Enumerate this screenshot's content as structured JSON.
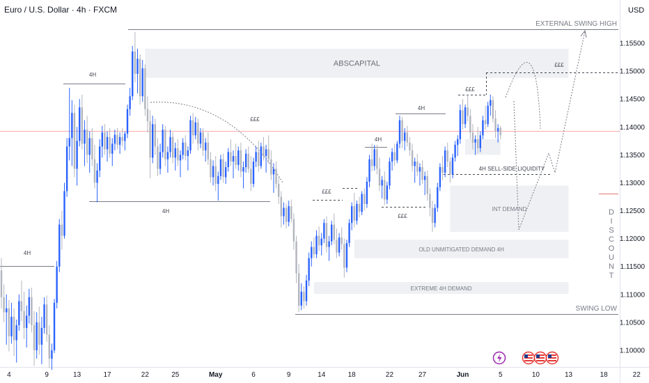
{
  "header": {
    "symbol_title": "Euro / U.S. Dollar · 4h · FXCM",
    "currency": "USD"
  },
  "colors": {
    "candle_up": "#2962ff",
    "candle_down": "#b2b5be",
    "zone_fill": "#eef0f3",
    "line": "#787b86",
    "price_line": "#f7a8a8",
    "axis_text": "#131722"
  },
  "chart_data": {
    "type": "candlestick",
    "title": "Euro / U.S. Dollar · 4h · FXCM",
    "y_ticks": [
      "1.15500",
      "1.15000",
      "1.14500",
      "1.14000",
      "1.13500",
      "1.13000",
      "1.12500",
      "1.12000",
      "1.11500",
      "1.11000",
      "1.10500",
      "1.10000"
    ],
    "ylim": [
      1.0965,
      1.1595
    ],
    "x_ticks": [
      {
        "label": "4",
        "idx": 3
      },
      {
        "label": "9",
        "idx": 18
      },
      {
        "label": "13",
        "idx": 30
      },
      {
        "label": "17",
        "idx": 42
      },
      {
        "label": "22",
        "idx": 57
      },
      {
        "label": "25",
        "idx": 69
      },
      {
        "label": "May",
        "idx": 85,
        "bold": true
      },
      {
        "label": "6",
        "idx": 100
      },
      {
        "label": "9",
        "idx": 114
      },
      {
        "label": "14",
        "idx": 127
      },
      {
        "label": "18",
        "idx": 139
      },
      {
        "label": "22",
        "idx": 154
      },
      {
        "label": "27",
        "idx": 167
      },
      {
        "label": "Jun",
        "idx": 183,
        "bold": true
      },
      {
        "label": "5",
        "idx": 198
      },
      {
        "label": "10",
        "idx": 212
      },
      {
        "label": "13",
        "idx": 225
      },
      {
        "label": "18",
        "idx": 239
      },
      {
        "label": "22",
        "idx": 252
      }
    ],
    "zones": [
      {
        "label": "ABSCAPITAL",
        "x0": 57,
        "x1": 225,
        "y_top": 1.154,
        "y_bot": 1.1488
      },
      {
        "label": "INT DEMAND",
        "x0": 178,
        "x1": 225,
        "y_top": 1.1295,
        "y_bot": 1.1212
      },
      {
        "label": "OLD UNMITIGATED DEMAND  4H",
        "x0": 140,
        "x1": 225,
        "y_top": 1.1198,
        "y_bot": 1.1165
      },
      {
        "label": "EXTREME 4H DEMAND",
        "x0": 124,
        "x1": 225,
        "y_top": 1.1122,
        "y_bot": 1.1101
      },
      {
        "label": "",
        "x0": 184,
        "x1": 198,
        "y_top": 1.1378,
        "y_bot": 1.135
      }
    ],
    "annotations": [
      {
        "text": "EXTERNAL SWING HIGH"
      },
      {
        "text": "SWING LOW"
      },
      {
        "text": "4H SELL-SIDE LIQUIDITY"
      },
      {
        "text": "4H"
      },
      {
        "text": "4H"
      },
      {
        "text": "4H"
      },
      {
        "text": "4H"
      },
      {
        "text": "4H"
      },
      {
        "text": "£££"
      },
      {
        "text": "£££"
      },
      {
        "text": "£££"
      },
      {
        "text": "£££"
      },
      {
        "text": "£££"
      },
      {
        "text": "£££"
      }
    ],
    "side_label": "DISCOUNT",
    "current_price": 1.1392,
    "candles": [
      [
        1.1143,
        1.1165,
        1.1075,
        1.1095
      ],
      [
        1.1095,
        1.1118,
        1.105,
        1.1068
      ],
      [
        1.1068,
        1.11,
        1.101,
        1.1075
      ],
      [
        1.1075,
        1.109,
        1.0998,
        1.1025
      ],
      [
        1.1025,
        1.1085,
        1.1012,
        1.106
      ],
      [
        1.106,
        1.1075,
        1.099,
        1.1018
      ],
      [
        1.1018,
        1.1055,
        1.0978,
        1.1045
      ],
      [
        1.1045,
        1.11,
        1.1035,
        1.1088
      ],
      [
        1.1088,
        1.1125,
        1.1052,
        1.107
      ],
      [
        1.107,
        1.1105,
        1.102,
        1.104
      ],
      [
        1.104,
        1.108,
        1.1005,
        1.1062
      ],
      [
        1.1062,
        1.111,
        1.1048,
        1.1095
      ],
      [
        1.1095,
        1.1112,
        1.1032,
        1.1045
      ],
      [
        1.1045,
        1.107,
        1.0972,
        1.1
      ],
      [
        1.1,
        1.1068,
        1.0985,
        1.105
      ],
      [
        1.105,
        1.1078,
        1.0992,
        1.101
      ],
      [
        1.101,
        1.106,
        1.0975,
        1.104
      ],
      [
        1.104,
        1.1095,
        1.103,
        1.1082
      ],
      [
        1.1082,
        1.1098,
        1.1015,
        1.1028
      ],
      [
        1.1028,
        1.1045,
        1.0968,
        1.0985
      ],
      [
        1.0985,
        1.1012,
        1.0965,
        1.1
      ],
      [
        1.1,
        1.1092,
        1.0995,
        1.1085
      ],
      [
        1.1085,
        1.116,
        1.1075,
        1.115
      ],
      [
        1.115,
        1.1235,
        1.114,
        1.1225
      ],
      [
        1.1225,
        1.125,
        1.118,
        1.1205
      ],
      [
        1.1205,
        1.13,
        1.12,
        1.1285
      ],
      [
        1.1285,
        1.138,
        1.1275,
        1.1365
      ],
      [
        1.1365,
        1.147,
        1.134,
        1.138
      ],
      [
        1.138,
        1.1448,
        1.133,
        1.1425
      ],
      [
        1.1425,
        1.144,
        1.131,
        1.1325
      ],
      [
        1.1325,
        1.14,
        1.1295,
        1.1375
      ],
      [
        1.1375,
        1.145,
        1.1365,
        1.1435
      ],
      [
        1.1435,
        1.1458,
        1.136,
        1.137
      ],
      [
        1.137,
        1.1412,
        1.133,
        1.1395
      ],
      [
        1.1395,
        1.142,
        1.1335,
        1.135
      ],
      [
        1.135,
        1.1392,
        1.1318,
        1.138
      ],
      [
        1.138,
        1.1398,
        1.133,
        1.1342
      ],
      [
        1.1342,
        1.1368,
        1.129,
        1.13
      ],
      [
        1.13,
        1.1335,
        1.1265,
        1.1322
      ],
      [
        1.1322,
        1.1378,
        1.131,
        1.1365
      ],
      [
        1.1365,
        1.1402,
        1.1345,
        1.139
      ],
      [
        1.139,
        1.1405,
        1.135,
        1.136
      ],
      [
        1.136,
        1.1392,
        1.1338,
        1.1382
      ],
      [
        1.1382,
        1.1398,
        1.1345,
        1.1352
      ],
      [
        1.1352,
        1.138,
        1.133,
        1.137
      ],
      [
        1.137,
        1.1395,
        1.1358,
        1.1386
      ],
      [
        1.1386,
        1.1398,
        1.136,
        1.1368
      ],
      [
        1.1368,
        1.139,
        1.1352,
        1.1382
      ],
      [
        1.1382,
        1.1398,
        1.1365,
        1.1375
      ],
      [
        1.1375,
        1.1392,
        1.1358,
        1.1388
      ],
      [
        1.1388,
        1.144,
        1.138,
        1.1432
      ],
      [
        1.1432,
        1.147,
        1.142,
        1.1455
      ],
      [
        1.1455,
        1.1545,
        1.1448,
        1.1535
      ],
      [
        1.1535,
        1.157,
        1.148,
        1.1495
      ],
      [
        1.1495,
        1.154,
        1.146,
        1.1522
      ],
      [
        1.1522,
        1.153,
        1.144,
        1.1455
      ],
      [
        1.1455,
        1.152,
        1.1445,
        1.1505
      ],
      [
        1.1505,
        1.1512,
        1.142,
        1.1432
      ],
      [
        1.1432,
        1.1455,
        1.139,
        1.141
      ],
      [
        1.141,
        1.143,
        1.1308,
        1.1345
      ],
      [
        1.1345,
        1.142,
        1.1335,
        1.1405
      ],
      [
        1.1405,
        1.1415,
        1.135,
        1.1365
      ],
      [
        1.1365,
        1.138,
        1.1312,
        1.1325
      ],
      [
        1.1325,
        1.137,
        1.1315,
        1.1355
      ],
      [
        1.1355,
        1.1405,
        1.1345,
        1.1395
      ],
      [
        1.1395,
        1.1402,
        1.133,
        1.1342
      ],
      [
        1.1342,
        1.1365,
        1.1318,
        1.1355
      ],
      [
        1.1355,
        1.1395,
        1.1345,
        1.1382
      ],
      [
        1.1382,
        1.139,
        1.1335,
        1.1345
      ],
      [
        1.1345,
        1.1372,
        1.1322,
        1.1362
      ],
      [
        1.1362,
        1.1378,
        1.133,
        1.134
      ],
      [
        1.134,
        1.1358,
        1.131,
        1.135
      ],
      [
        1.135,
        1.138,
        1.1342,
        1.1372
      ],
      [
        1.1372,
        1.1385,
        1.134,
        1.1348
      ],
      [
        1.1348,
        1.1365,
        1.1322,
        1.1358
      ],
      [
        1.1358,
        1.142,
        1.1352,
        1.1412
      ],
      [
        1.1412,
        1.1425,
        1.137,
        1.1385
      ],
      [
        1.1385,
        1.1418,
        1.1378,
        1.1408
      ],
      [
        1.1408,
        1.1415,
        1.1358,
        1.137
      ],
      [
        1.137,
        1.1398,
        1.1362,
        1.139
      ],
      [
        1.139,
        1.1398,
        1.1348,
        1.1358
      ],
      [
        1.1358,
        1.138,
        1.1338,
        1.1372
      ],
      [
        1.1372,
        1.139,
        1.1332,
        1.1342
      ],
      [
        1.1342,
        1.1355,
        1.13,
        1.131
      ],
      [
        1.131,
        1.134,
        1.1295,
        1.133
      ],
      [
        1.133,
        1.1348,
        1.1285,
        1.1298
      ],
      [
        1.1298,
        1.132,
        1.1268,
        1.1312
      ],
      [
        1.1312,
        1.135,
        1.1305,
        1.1342
      ],
      [
        1.1342,
        1.1352,
        1.13,
        1.131
      ],
      [
        1.131,
        1.1338,
        1.1298,
        1.1328
      ],
      [
        1.1328,
        1.1362,
        1.132,
        1.1355
      ],
      [
        1.1355,
        1.1378,
        1.133,
        1.1338
      ],
      [
        1.1338,
        1.1358,
        1.1308,
        1.1348
      ],
      [
        1.1348,
        1.137,
        1.1325,
        1.1332
      ],
      [
        1.1332,
        1.1365,
        1.1322,
        1.1358
      ],
      [
        1.1358,
        1.1372,
        1.131,
        1.132
      ],
      [
        1.132,
        1.1338,
        1.129,
        1.1328
      ],
      [
        1.1328,
        1.136,
        1.1318,
        1.1352
      ],
      [
        1.1352,
        1.1365,
        1.1318,
        1.1325
      ],
      [
        1.1325,
        1.1348,
        1.1285,
        1.1298
      ],
      [
        1.1298,
        1.1345,
        1.1292,
        1.1338
      ],
      [
        1.1338,
        1.1365,
        1.1328,
        1.1355
      ],
      [
        1.1355,
        1.1375,
        1.132,
        1.133
      ],
      [
        1.133,
        1.1372,
        1.1325,
        1.1365
      ],
      [
        1.1365,
        1.1382,
        1.134,
        1.1348
      ],
      [
        1.1348,
        1.1368,
        1.1318,
        1.136
      ],
      [
        1.136,
        1.1385,
        1.1335,
        1.1342
      ],
      [
        1.1342,
        1.1358,
        1.1305,
        1.1315
      ],
      [
        1.1315,
        1.1335,
        1.1282,
        1.1325
      ],
      [
        1.1325,
        1.1338,
        1.129,
        1.1298
      ],
      [
        1.1298,
        1.131,
        1.1262,
        1.1275
      ],
      [
        1.1275,
        1.1285,
        1.122,
        1.124
      ],
      [
        1.124,
        1.1265,
        1.1225,
        1.1255
      ],
      [
        1.1255,
        1.1262,
        1.1218,
        1.123
      ],
      [
        1.123,
        1.1268,
        1.1222,
        1.1258
      ],
      [
        1.1258,
        1.127,
        1.1228,
        1.1235
      ],
      [
        1.1235,
        1.1245,
        1.118,
        1.1195
      ],
      [
        1.1195,
        1.1205,
        1.112,
        1.1138
      ],
      [
        1.1138,
        1.1155,
        1.1068,
        1.108
      ],
      [
        1.108,
        1.112,
        1.1072,
        1.1105
      ],
      [
        1.1105,
        1.1115,
        1.1075,
        1.1088
      ],
      [
        1.1088,
        1.1135,
        1.108,
        1.1125
      ],
      [
        1.1125,
        1.1175,
        1.1115,
        1.1165
      ],
      [
        1.1165,
        1.1195,
        1.115,
        1.1185
      ],
      [
        1.1185,
        1.1202,
        1.1165,
        1.1172
      ],
      [
        1.1172,
        1.1215,
        1.1165,
        1.1205
      ],
      [
        1.1205,
        1.1222,
        1.1178,
        1.1188
      ],
      [
        1.1188,
        1.121,
        1.117,
        1.12
      ],
      [
        1.12,
        1.1235,
        1.1192,
        1.1228
      ],
      [
        1.1228,
        1.124,
        1.1175,
        1.1185
      ],
      [
        1.1185,
        1.1205,
        1.116,
        1.1195
      ],
      [
        1.1195,
        1.1232,
        1.1188,
        1.1225
      ],
      [
        1.1225,
        1.1245,
        1.119,
        1.1198
      ],
      [
        1.1198,
        1.1218,
        1.1165,
        1.1175
      ],
      [
        1.1175,
        1.121,
        1.1168,
        1.1202
      ],
      [
        1.1202,
        1.122,
        1.118,
        1.119
      ],
      [
        1.119,
        1.12,
        1.113,
        1.1148
      ],
      [
        1.1148,
        1.1198,
        1.114,
        1.1192
      ],
      [
        1.1192,
        1.1235,
        1.1185,
        1.1228
      ],
      [
        1.1228,
        1.1265,
        1.1215,
        1.1258
      ],
      [
        1.1258,
        1.1282,
        1.122,
        1.1232
      ],
      [
        1.1232,
        1.1268,
        1.1225,
        1.1262
      ],
      [
        1.1262,
        1.1275,
        1.1238,
        1.1248
      ],
      [
        1.1248,
        1.1285,
        1.1242,
        1.128
      ],
      [
        1.128,
        1.129,
        1.125,
        1.1262
      ],
      [
        1.1262,
        1.131,
        1.1255,
        1.1302
      ],
      [
        1.1302,
        1.135,
        1.1292,
        1.1342
      ],
      [
        1.1342,
        1.137,
        1.132,
        1.133
      ],
      [
        1.133,
        1.1368,
        1.1322,
        1.136
      ],
      [
        1.136,
        1.1368,
        1.1315,
        1.1325
      ],
      [
        1.1325,
        1.1345,
        1.1285,
        1.1295
      ],
      [
        1.1295,
        1.1312,
        1.1272,
        1.1305
      ],
      [
        1.1305,
        1.132,
        1.126,
        1.127
      ],
      [
        1.127,
        1.1302,
        1.1262,
        1.1295
      ],
      [
        1.1295,
        1.1345,
        1.1288,
        1.1338
      ],
      [
        1.1338,
        1.1362,
        1.1322,
        1.1355
      ],
      [
        1.1355,
        1.137,
        1.133,
        1.134
      ],
      [
        1.134,
        1.1375,
        1.1335,
        1.137
      ],
      [
        1.137,
        1.142,
        1.1362,
        1.1412
      ],
      [
        1.1412,
        1.1418,
        1.1362,
        1.1375
      ],
      [
        1.1375,
        1.1398,
        1.1358,
        1.139
      ],
      [
        1.139,
        1.1402,
        1.1365,
        1.1372
      ],
      [
        1.1372,
        1.1382,
        1.1348,
        1.1358
      ],
      [
        1.1358,
        1.137,
        1.132,
        1.133
      ],
      [
        1.133,
        1.1345,
        1.13,
        1.1338
      ],
      [
        1.1338,
        1.1352,
        1.1312,
        1.132
      ],
      [
        1.132,
        1.1335,
        1.1295,
        1.1328
      ],
      [
        1.1328,
        1.134,
        1.1298,
        1.1305
      ],
      [
        1.1305,
        1.132,
        1.1278,
        1.1312
      ],
      [
        1.1312,
        1.1322,
        1.1268,
        1.128
      ],
      [
        1.128,
        1.129,
        1.124,
        1.1255
      ],
      [
        1.1255,
        1.1268,
        1.1212,
        1.1228
      ],
      [
        1.1228,
        1.1262,
        1.122,
        1.1255
      ],
      [
        1.1255,
        1.13,
        1.1248,
        1.1292
      ],
      [
        1.1292,
        1.1335,
        1.1285,
        1.1328
      ],
      [
        1.1328,
        1.1348,
        1.1305,
        1.1318
      ],
      [
        1.1318,
        1.1365,
        1.131,
        1.1358
      ],
      [
        1.1358,
        1.1372,
        1.1328,
        1.1338
      ],
      [
        1.1338,
        1.1345,
        1.13,
        1.1315
      ],
      [
        1.1315,
        1.1352,
        1.1308,
        1.1345
      ],
      [
        1.1345,
        1.1375,
        1.1338,
        1.1368
      ],
      [
        1.1368,
        1.1385,
        1.1348,
        1.1378
      ],
      [
        1.1378,
        1.144,
        1.137,
        1.143
      ],
      [
        1.143,
        1.145,
        1.1395,
        1.1405
      ],
      [
        1.1405,
        1.144,
        1.1398,
        1.1435
      ],
      [
        1.1435,
        1.1458,
        1.141,
        1.142
      ],
      [
        1.142,
        1.1432,
        1.1378,
        1.139
      ],
      [
        1.139,
        1.1405,
        1.136,
        1.1372
      ],
      [
        1.1372,
        1.1385,
        1.135,
        1.1378
      ],
      [
        1.1378,
        1.14,
        1.1352,
        1.1362
      ],
      [
        1.1362,
        1.1392,
        1.1355,
        1.1385
      ],
      [
        1.1385,
        1.142,
        1.1378,
        1.1412
      ],
      [
        1.1412,
        1.1438,
        1.1395,
        1.1405
      ],
      [
        1.1405,
        1.1445,
        1.14,
        1.1438
      ],
      [
        1.1438,
        1.1458,
        1.142,
        1.1448
      ],
      [
        1.1448,
        1.1455,
        1.1408,
        1.1415
      ],
      [
        1.1415,
        1.143,
        1.138,
        1.1392
      ],
      [
        1.1392,
        1.1405,
        1.1372,
        1.1398
      ],
      [
        1.1398,
        1.1402,
        1.1378,
        1.1385
      ]
    ]
  }
}
